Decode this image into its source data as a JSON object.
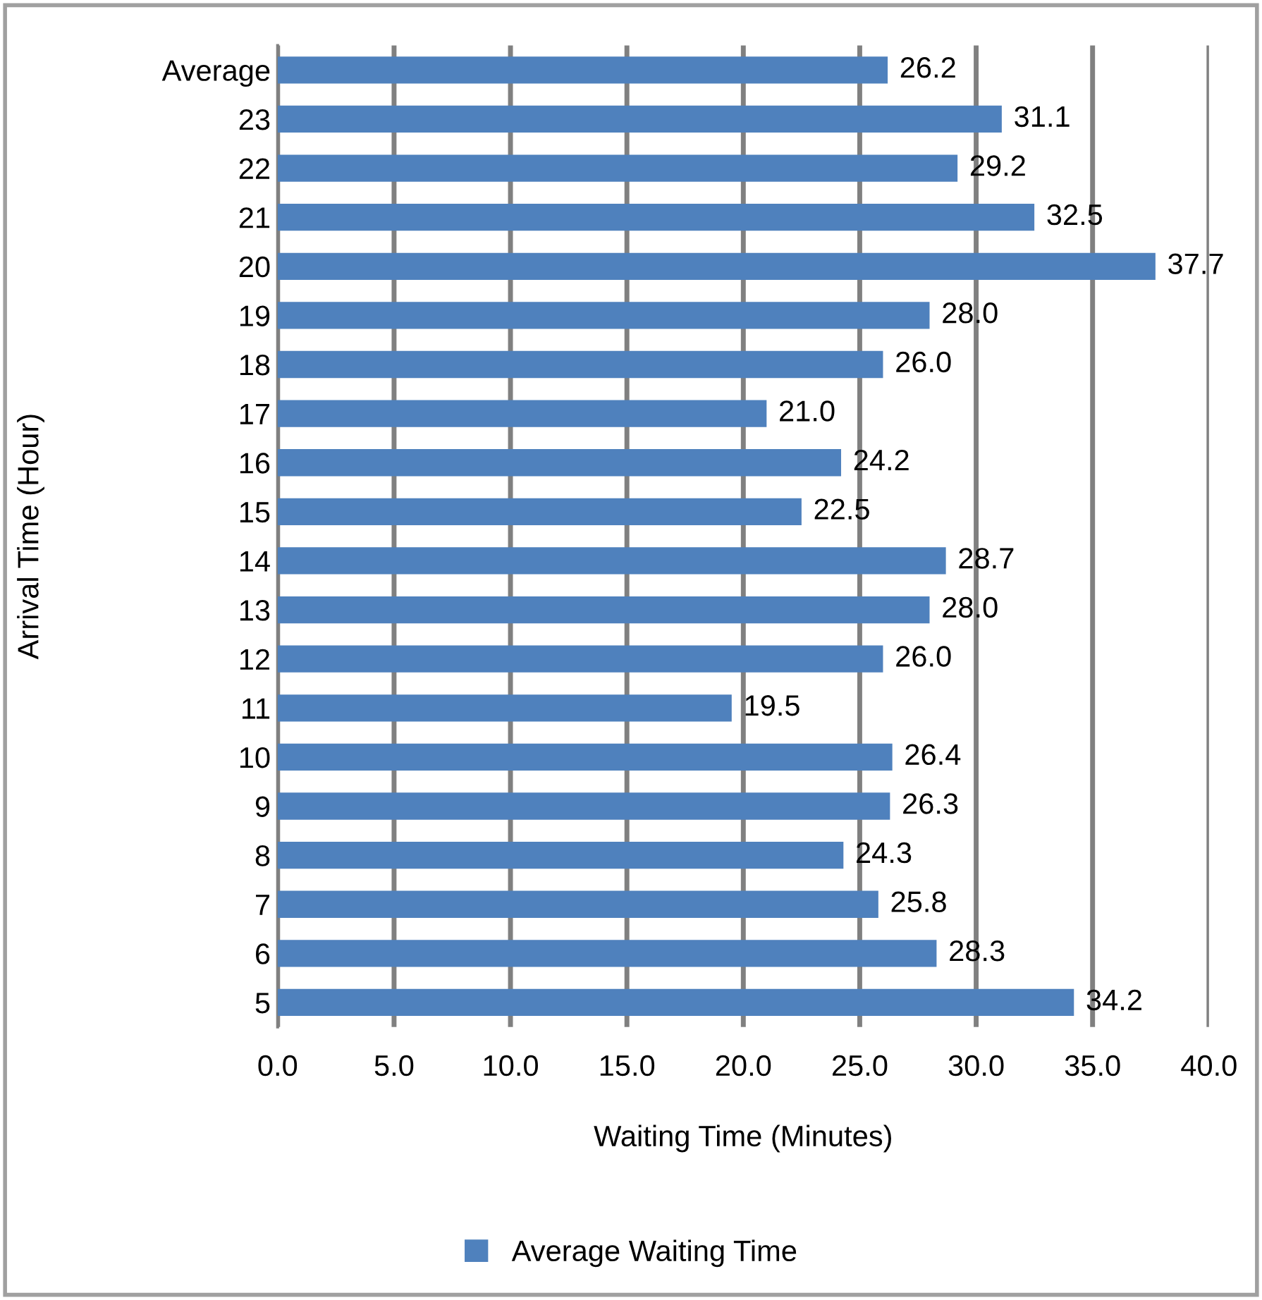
{
  "chart_data": {
    "type": "bar",
    "orientation": "horizontal",
    "xlabel": "Waiting Time (Minutes)",
    "ylabel": "Arrival Time (Hour)",
    "categories": [
      "Average",
      "23",
      "22",
      "21",
      "20",
      "19",
      "18",
      "17",
      "16",
      "15",
      "14",
      "13",
      "12",
      "11",
      "10",
      "9",
      "8",
      "7",
      "6",
      "5"
    ],
    "series": [
      {
        "name": "Average Waiting Time",
        "color": "#4f81bd",
        "values": [
          26.2,
          31.1,
          29.2,
          32.5,
          37.7,
          28.0,
          26.0,
          21.0,
          24.2,
          22.5,
          28.7,
          28.0,
          26.0,
          19.5,
          26.4,
          26.3,
          24.3,
          25.8,
          28.3,
          34.2
        ],
        "value_labels": [
          "26.2",
          "31.1",
          "29.2",
          "32.5",
          "37.7",
          "28.0",
          "26.0",
          "21.0",
          "24.2",
          "22.5",
          "28.7",
          "28.0",
          "26.0",
          "19.5",
          "26.4",
          "26.3",
          "24.3",
          "25.8",
          "28.3",
          "34.2"
        ]
      }
    ],
    "xlim": [
      0,
      40
    ],
    "xticks": [
      {
        "value": 0,
        "label": "0.0"
      },
      {
        "value": 5,
        "label": "5.0"
      },
      {
        "value": 10,
        "label": "10.0"
      },
      {
        "value": 15,
        "label": "15.0"
      },
      {
        "value": 20,
        "label": "20.0"
      },
      {
        "value": 25,
        "label": "25.0"
      },
      {
        "value": 30,
        "label": "30.0"
      },
      {
        "value": 35,
        "label": "35.0"
      },
      {
        "value": 40,
        "label": "40.0"
      }
    ],
    "grid": "x",
    "legend": "bottom"
  }
}
